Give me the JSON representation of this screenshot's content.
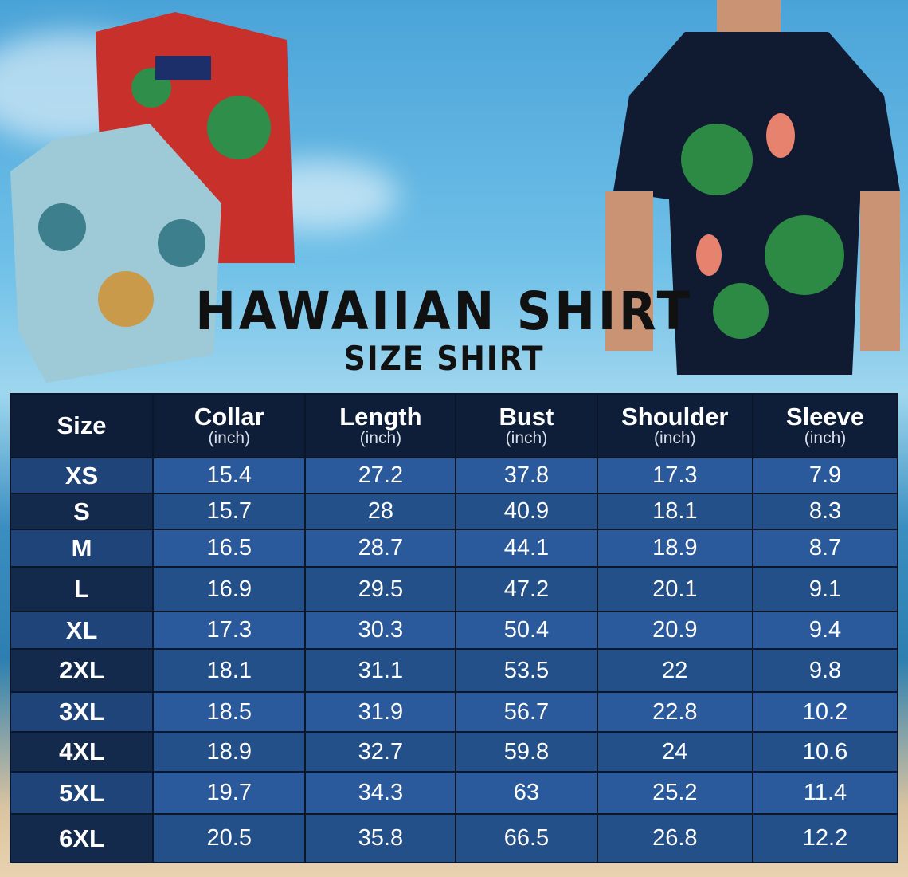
{
  "title": "HAWAIIAN SHIRT",
  "subtitle": "SIZE SHIRT",
  "colors": {
    "header": "#0f1e38",
    "row_light": "#2b5a9c",
    "row_dark": "#24508a",
    "size_col": "#142a4c"
  },
  "table": {
    "headers": [
      {
        "label": "Size",
        "unit": ""
      },
      {
        "label": "Collar",
        "unit": "(inch)"
      },
      {
        "label": "Length",
        "unit": "(inch)"
      },
      {
        "label": "Bust",
        "unit": "(inch)"
      },
      {
        "label": "Shoulder",
        "unit": "(inch)"
      },
      {
        "label": "Sleeve",
        "unit": "(inch)"
      }
    ],
    "rows": [
      [
        "XS",
        "15.4",
        "27.2",
        "37.8",
        "17.3",
        "7.9"
      ],
      [
        "S",
        "15.7",
        "28",
        "40.9",
        "18.1",
        "8.3"
      ],
      [
        "M",
        "16.5",
        "28.7",
        "44.1",
        "18.9",
        "8.7"
      ],
      [
        "L",
        "16.9",
        "29.5",
        "47.2",
        "20.1",
        "9.1"
      ],
      [
        "XL",
        "17.3",
        "30.3",
        "50.4",
        "20.9",
        "9.4"
      ],
      [
        "2XL",
        "18.1",
        "31.1",
        "53.5",
        "22",
        "9.8"
      ],
      [
        "3XL",
        "18.5",
        "31.9",
        "56.7",
        "22.8",
        "10.2"
      ],
      [
        "4XL",
        "18.9",
        "32.7",
        "59.8",
        "24",
        "10.6"
      ],
      [
        "5XL",
        "19.7",
        "34.3",
        "63",
        "25.2",
        "11.4"
      ],
      [
        "6XL",
        "20.5",
        "35.8",
        "66.5",
        "26.8",
        "12.2"
      ]
    ]
  }
}
